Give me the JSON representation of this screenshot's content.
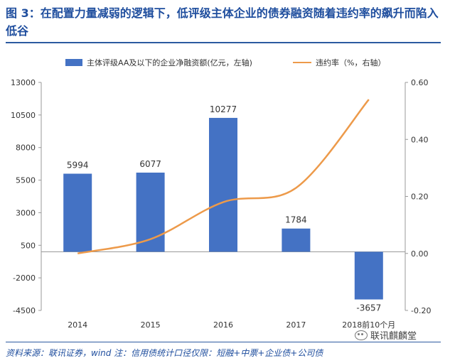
{
  "title": "图 3：在配置力量减弱的逻辑下，低评级主体企业的债券融资随着违约率的飙升而陷入低谷",
  "source": "资料来源：联讯证券，wind 注：信用债统计口径仅限：短融+中票+企业债+公司债",
  "watermark": "联讯麒麟堂",
  "colors": {
    "bar": "#4472c4",
    "line": "#ed9a4a",
    "title": "#1f4e9e",
    "axis": "#999999"
  },
  "chart_data": {
    "type": "bar+line",
    "categories": [
      "2014",
      "2015",
      "2016",
      "2017",
      "2018前10个月"
    ],
    "series": [
      {
        "name": "主体评级AA及以下的企业净融资额(亿元，左轴)",
        "type": "bar",
        "axis": "left",
        "values": [
          5994,
          6077,
          10277,
          1784,
          -3657
        ],
        "data_labels": [
          "5994",
          "6077",
          "10277",
          "1784",
          "-3657"
        ]
      },
      {
        "name": "违约率（%，右轴）",
        "type": "line",
        "axis": "right",
        "values": [
          0.0,
          0.05,
          0.18,
          0.23,
          0.54
        ]
      }
    ],
    "left_axis": {
      "min": -4500,
      "max": 13000,
      "ticks": [
        -4500,
        -2000,
        500,
        3000,
        5500,
        8000,
        10500,
        13000
      ]
    },
    "right_axis": {
      "min": -0.2,
      "max": 0.6,
      "ticks": [
        "-0.20",
        "0.00",
        "0.20",
        "0.40",
        "0.60"
      ]
    },
    "legend_position": "top",
    "grid": false
  }
}
